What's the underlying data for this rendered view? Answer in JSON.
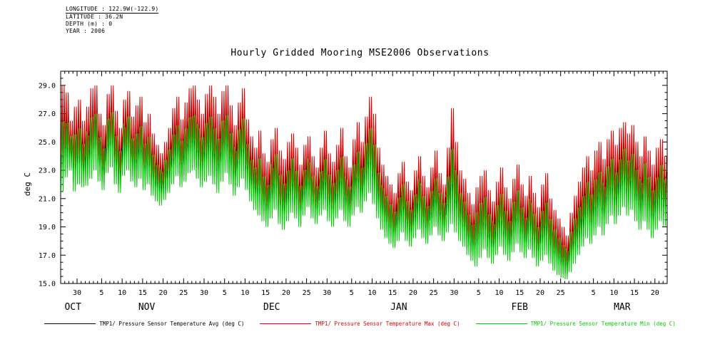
{
  "header": {
    "lines": [
      "LONGITUDE : 122.9W(-122.9)",
      "LATITUDE : 36.2N",
      "DEPTH (m) : 0",
      "YEAR : 2006"
    ]
  },
  "title": "Hourly Gridded Mooring MSE2006 Observations",
  "y_axis": {
    "label": "deg C",
    "axis_range": [
      15,
      30
    ],
    "minor_step": 0.5,
    "tick_labels": [
      "15.0",
      "17.0",
      "19.0",
      "21.0",
      "23.0",
      "25.0",
      "27.0",
      "29.0"
    ]
  },
  "chart_data": {
    "type": "line",
    "title": "Hourly Gridded Mooring MSE2006 Observations",
    "xlabel": "",
    "ylabel": "deg C",
    "ylim": [
      15,
      30
    ],
    "grid": false,
    "legend_position": "bottom",
    "x_unit": "days (hourly data, daily envelope estimates below)",
    "day_tick_label_multiple": 5,
    "months": [
      {
        "name": "OCT",
        "first_day": 26,
        "num_days": 6
      },
      {
        "name": "NOV",
        "first_day": 1,
        "num_days": 30
      },
      {
        "name": "DEC",
        "first_day": 1,
        "num_days": 31
      },
      {
        "name": "JAN",
        "first_day": 1,
        "num_days": 31
      },
      {
        "name": "FEB",
        "first_day": 1,
        "num_days": 28
      },
      {
        "name": "MAR",
        "first_day": 1,
        "num_days": 22
      }
    ],
    "series": [
      {
        "name": "TMP1/ Pressure Sensor Temperature Avg (deg C)",
        "role": "avg",
        "color": "#000000",
        "daily_values": [
          25.3,
          25.5,
          24.8,
          24.5,
          25.0,
          24.2,
          24.7,
          25.6,
          26.0,
          24.6,
          23.9,
          25.6,
          26.1,
          24.6,
          23.7,
          25.3,
          25.8,
          24.5,
          24.7,
          25.3,
          24.0,
          24.5,
          23.4,
          22.8,
          22.4,
          23.0,
          23.7,
          24.7,
          25.4,
          24.2,
          25.0,
          25.8,
          26.0,
          25.2,
          24.4,
          25.3,
          25.8,
          25.1,
          24.2,
          25.4,
          25.9,
          24.8,
          23.7,
          24.8,
          25.6,
          24.1,
          23.1,
          22.4,
          22.8,
          21.8,
          21.3,
          22.4,
          23.1,
          21.8,
          21.3,
          22.2,
          22.8,
          22.1,
          21.2,
          22.3,
          22.9,
          21.8,
          21.2,
          22.2,
          23.0,
          21.8,
          21.3,
          22.2,
          23.1,
          21.7,
          21.1,
          22.5,
          23.4,
          22.5,
          23.8,
          24.8,
          23.8,
          22.1,
          21.1,
          20.4,
          19.9,
          19.5,
          20.4,
          21.1,
          20.1,
          19.6,
          20.6,
          21.4,
          20.4,
          19.8,
          20.8,
          21.7,
          20.6,
          20.0,
          21.6,
          23.3,
          21.8,
          20.5,
          20.0,
          19.2,
          18.6,
          19.0,
          19.7,
          20.2,
          19.2,
          18.6,
          19.6,
          20.4,
          19.4,
          18.8,
          19.8,
          20.6,
          19.6,
          19.0,
          20.0,
          19.1,
          18.3,
          19.3,
          19.9,
          18.7,
          18.1,
          17.6,
          17.2,
          16.9,
          17.9,
          18.8,
          19.6,
          20.4,
          21.1,
          20.4,
          21.4,
          22.0,
          21.1,
          22.2,
          22.8,
          22.0,
          22.9,
          23.4,
          22.7,
          23.2,
          22.2,
          21.4,
          22.4,
          21.6,
          20.8,
          21.7,
          22.3,
          21.5
        ]
      },
      {
        "name": "TMP1/ Pressure Sensor Temperature Max (deg C)",
        "role": "max",
        "color": "#dd0000",
        "daily_values": [
          29.0,
          28.5,
          26.5,
          27.5,
          28.0,
          26.5,
          27.5,
          28.8,
          29.0,
          27.0,
          26.2,
          28.4,
          29.0,
          27.2,
          26.0,
          28.0,
          28.6,
          26.8,
          27.6,
          28.2,
          26.4,
          27.0,
          25.6,
          24.8,
          24.2,
          25.0,
          26.0,
          27.4,
          28.2,
          26.6,
          27.8,
          28.8,
          29.0,
          28.0,
          27.0,
          28.4,
          29.0,
          28.2,
          27.0,
          28.6,
          29.0,
          27.6,
          26.2,
          27.8,
          28.8,
          26.6,
          25.4,
          24.6,
          25.8,
          24.2,
          23.6,
          25.2,
          26.0,
          24.4,
          23.8,
          25.0,
          25.6,
          24.6,
          23.4,
          24.8,
          25.4,
          24.0,
          23.2,
          24.6,
          25.8,
          24.2,
          23.6,
          24.8,
          26.0,
          24.0,
          23.2,
          25.2,
          26.4,
          25.0,
          26.8,
          28.2,
          27.0,
          24.6,
          23.4,
          22.6,
          22.0,
          21.4,
          22.8,
          23.6,
          22.2,
          21.6,
          23.0,
          24.0,
          22.6,
          21.8,
          23.2,
          24.4,
          22.8,
          22.0,
          24.6,
          27.4,
          25.0,
          23.0,
          22.4,
          21.4,
          20.6,
          21.8,
          22.6,
          23.0,
          21.6,
          20.8,
          22.2,
          23.2,
          21.8,
          21.0,
          22.4,
          23.4,
          22.0,
          21.2,
          22.6,
          21.4,
          20.4,
          22.0,
          22.8,
          21.0,
          20.2,
          19.6,
          19.0,
          18.4,
          20.0,
          21.2,
          22.2,
          23.2,
          24.0,
          23.0,
          24.4,
          25.0,
          23.8,
          25.2,
          25.8,
          24.8,
          26.0,
          26.4,
          25.6,
          26.2,
          25.0,
          24.0,
          25.4,
          24.4,
          23.4,
          24.6,
          25.2,
          24.0
        ]
      },
      {
        "name": "TMP1/ Pressure Sensor Temperature Min (deg C)",
        "role": "min",
        "color": "#00cc00",
        "daily_values": [
          21.5,
          22.5,
          23.0,
          21.5,
          22.0,
          21.8,
          21.9,
          22.4,
          23.0,
          22.2,
          21.6,
          22.8,
          23.2,
          22.0,
          21.4,
          22.6,
          23.0,
          22.2,
          21.8,
          22.4,
          21.6,
          22.0,
          21.2,
          20.8,
          20.5,
          20.9,
          21.4,
          22.0,
          22.6,
          21.8,
          22.2,
          22.8,
          23.0,
          22.4,
          21.8,
          22.2,
          22.6,
          22.0,
          21.4,
          22.2,
          22.8,
          22.0,
          21.2,
          21.8,
          22.4,
          21.6,
          20.8,
          20.2,
          19.8,
          19.4,
          19.0,
          19.6,
          20.2,
          19.2,
          18.8,
          19.4,
          20.0,
          19.6,
          19.0,
          19.8,
          20.4,
          19.6,
          19.2,
          19.8,
          20.2,
          19.4,
          19.0,
          19.6,
          20.2,
          19.4,
          19.0,
          19.8,
          20.4,
          20.0,
          20.8,
          21.4,
          20.6,
          19.6,
          18.8,
          18.2,
          17.8,
          17.5,
          18.0,
          18.6,
          18.0,
          17.6,
          18.2,
          18.8,
          18.2,
          17.8,
          18.4,
          19.0,
          18.4,
          18.0,
          18.6,
          19.2,
          18.6,
          18.0,
          17.6,
          17.0,
          16.6,
          16.2,
          16.8,
          17.4,
          16.8,
          16.4,
          17.0,
          17.6,
          17.0,
          16.6,
          17.2,
          17.8,
          17.2,
          16.8,
          17.4,
          16.8,
          16.2,
          16.6,
          17.0,
          16.4,
          15.9,
          15.6,
          15.4,
          15.3,
          15.8,
          16.4,
          17.0,
          17.6,
          18.2,
          17.8,
          18.4,
          19.0,
          18.4,
          19.2,
          19.8,
          19.2,
          19.8,
          20.4,
          19.8,
          20.2,
          19.4,
          18.8,
          19.4,
          18.8,
          18.2,
          18.8,
          19.4,
          19.0
        ]
      }
    ]
  }
}
